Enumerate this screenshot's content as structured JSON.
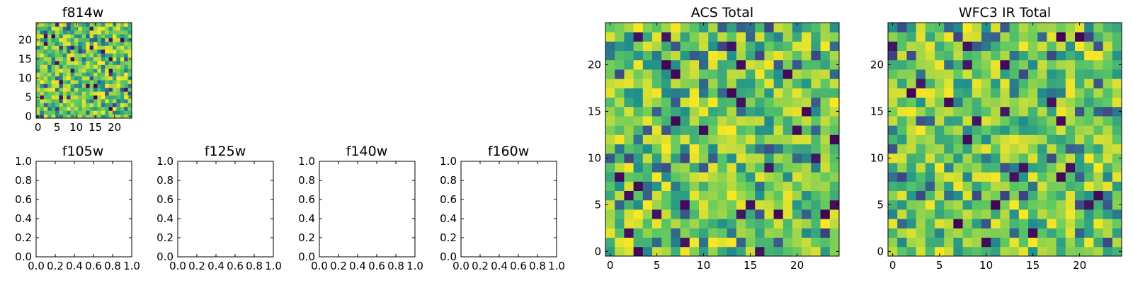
{
  "chart_data": [
    {
      "id": "f814w",
      "type": "heatmap",
      "title": "f814w",
      "grid_size": 25,
      "has_image": true,
      "seed": 814,
      "xlim": [
        -0.5,
        24.5
      ],
      "ylim": [
        -0.5,
        24.5
      ],
      "xticks": [
        0,
        5,
        10,
        15,
        20
      ],
      "yticks": [
        0,
        5,
        10,
        15,
        20
      ],
      "xtick_labels": [
        "0",
        "5",
        "10",
        "15",
        "20"
      ],
      "ytick_labels": [
        "0",
        "5",
        "10",
        "15",
        "20"
      ],
      "colormap": "viridis"
    },
    {
      "id": "f105w",
      "type": "heatmap",
      "title": "f105w",
      "has_image": false,
      "xlim": [
        0,
        1
      ],
      "ylim": [
        0,
        1
      ],
      "xticks": [
        0,
        0.2,
        0.4,
        0.6,
        0.8,
        1.0
      ],
      "yticks": [
        0,
        0.2,
        0.4,
        0.6,
        0.8,
        1.0
      ],
      "xtick_labels": [
        "0.0",
        "0.2",
        "0.4",
        "0.6",
        "0.8",
        "1.0"
      ],
      "ytick_labels": [
        "0.0",
        "0.2",
        "0.4",
        "0.6",
        "0.8",
        "1.0"
      ]
    },
    {
      "id": "f125w",
      "type": "heatmap",
      "title": "f125w",
      "has_image": false,
      "xlim": [
        0,
        1
      ],
      "ylim": [
        0,
        1
      ],
      "xticks": [
        0,
        0.2,
        0.4,
        0.6,
        0.8,
        1.0
      ],
      "yticks": [
        0,
        0.2,
        0.4,
        0.6,
        0.8,
        1.0
      ],
      "xtick_labels": [
        "0.0",
        "0.2",
        "0.4",
        "0.6",
        "0.8",
        "1.0"
      ],
      "ytick_labels": [
        "0.0",
        "0.2",
        "0.4",
        "0.6",
        "0.8",
        "1.0"
      ]
    },
    {
      "id": "f140w",
      "type": "heatmap",
      "title": "f140w",
      "has_image": false,
      "xlim": [
        0,
        1
      ],
      "ylim": [
        0,
        1
      ],
      "xticks": [
        0,
        0.2,
        0.4,
        0.6,
        0.8,
        1.0
      ],
      "yticks": [
        0,
        0.2,
        0.4,
        0.6,
        0.8,
        1.0
      ],
      "xtick_labels": [
        "0.0",
        "0.2",
        "0.4",
        "0.6",
        "0.8",
        "1.0"
      ],
      "ytick_labels": [
        "0.0",
        "0.2",
        "0.4",
        "0.6",
        "0.8",
        "1.0"
      ]
    },
    {
      "id": "f160w",
      "type": "heatmap",
      "title": "f160w",
      "has_image": false,
      "xlim": [
        0,
        1
      ],
      "ylim": [
        0,
        1
      ],
      "xticks": [
        0,
        0.2,
        0.4,
        0.6,
        0.8,
        1.0
      ],
      "yticks": [
        0,
        0.2,
        0.4,
        0.6,
        0.8,
        1.0
      ],
      "xtick_labels": [
        "0.0",
        "0.2",
        "0.4",
        "0.6",
        "0.8",
        "1.0"
      ],
      "ytick_labels": [
        "0.0",
        "0.2",
        "0.4",
        "0.6",
        "0.8",
        "1.0"
      ]
    },
    {
      "id": "acs-total",
      "type": "heatmap",
      "title": "ACS Total",
      "grid_size": 25,
      "has_image": true,
      "seed": 1207,
      "xlim": [
        -0.5,
        24.5
      ],
      "ylim": [
        -0.5,
        24.5
      ],
      "xticks": [
        0,
        5,
        10,
        15,
        20
      ],
      "yticks": [
        0,
        5,
        10,
        15,
        20
      ],
      "xtick_labels": [
        "0",
        "5",
        "10",
        "15",
        "20"
      ],
      "ytick_labels": [
        "0",
        "5",
        "10",
        "15",
        "20"
      ],
      "colormap": "viridis"
    },
    {
      "id": "wfc3-ir-total",
      "type": "heatmap",
      "title": "WFC3 IR Total",
      "grid_size": 25,
      "has_image": true,
      "seed": 3301,
      "xlim": [
        -0.5,
        24.5
      ],
      "ylim": [
        -0.5,
        24.5
      ],
      "xticks": [
        0,
        5,
        10,
        15,
        20
      ],
      "yticks": [
        0,
        5,
        10,
        15,
        20
      ],
      "xtick_labels": [
        "0",
        "5",
        "10",
        "15",
        "20"
      ],
      "ytick_labels": [
        "0",
        "5",
        "10",
        "15",
        "20"
      ],
      "colormap": "viridis"
    }
  ],
  "colormap": {
    "name": "viridis",
    "stops": [
      "#440154",
      "#3b528b",
      "#21918c",
      "#5ec962",
      "#fde725"
    ]
  }
}
